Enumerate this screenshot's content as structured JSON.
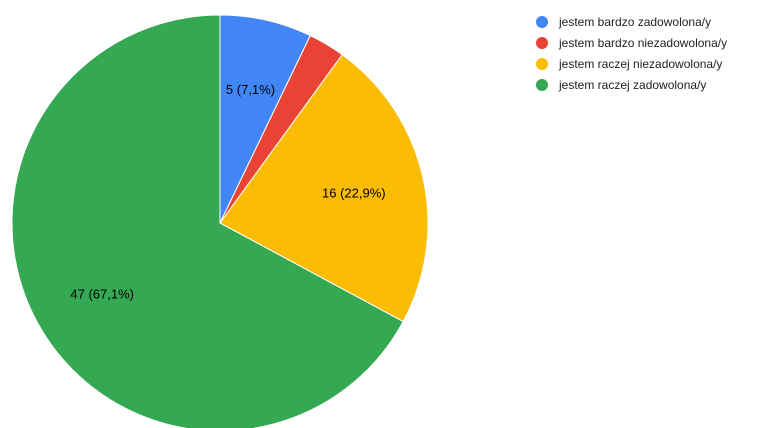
{
  "chart_data": {
    "type": "pie",
    "start_angle_deg": 0,
    "direction": "clockwise",
    "legend_position": "right",
    "slices": [
      {
        "label": "jestem bardzo zadowolona/y",
        "value": 5,
        "percent": 7.1,
        "data_label": "5 (7,1%)",
        "color": "#4285F4"
      },
      {
        "label": "jestem bardzo niezadowolona/y",
        "value": 2,
        "percent": 2.9,
        "data_label": "",
        "color": "#EA4335"
      },
      {
        "label": "jestem raczej niezadowolona/y",
        "value": 16,
        "percent": 22.9,
        "data_label": "16 (22,9%)",
        "color": "#FBBC04"
      },
      {
        "label": "jestem raczej zadowolona/y",
        "value": 47,
        "percent": 67.1,
        "data_label": "47 (67,1%)",
        "color": "#34A853"
      }
    ]
  }
}
